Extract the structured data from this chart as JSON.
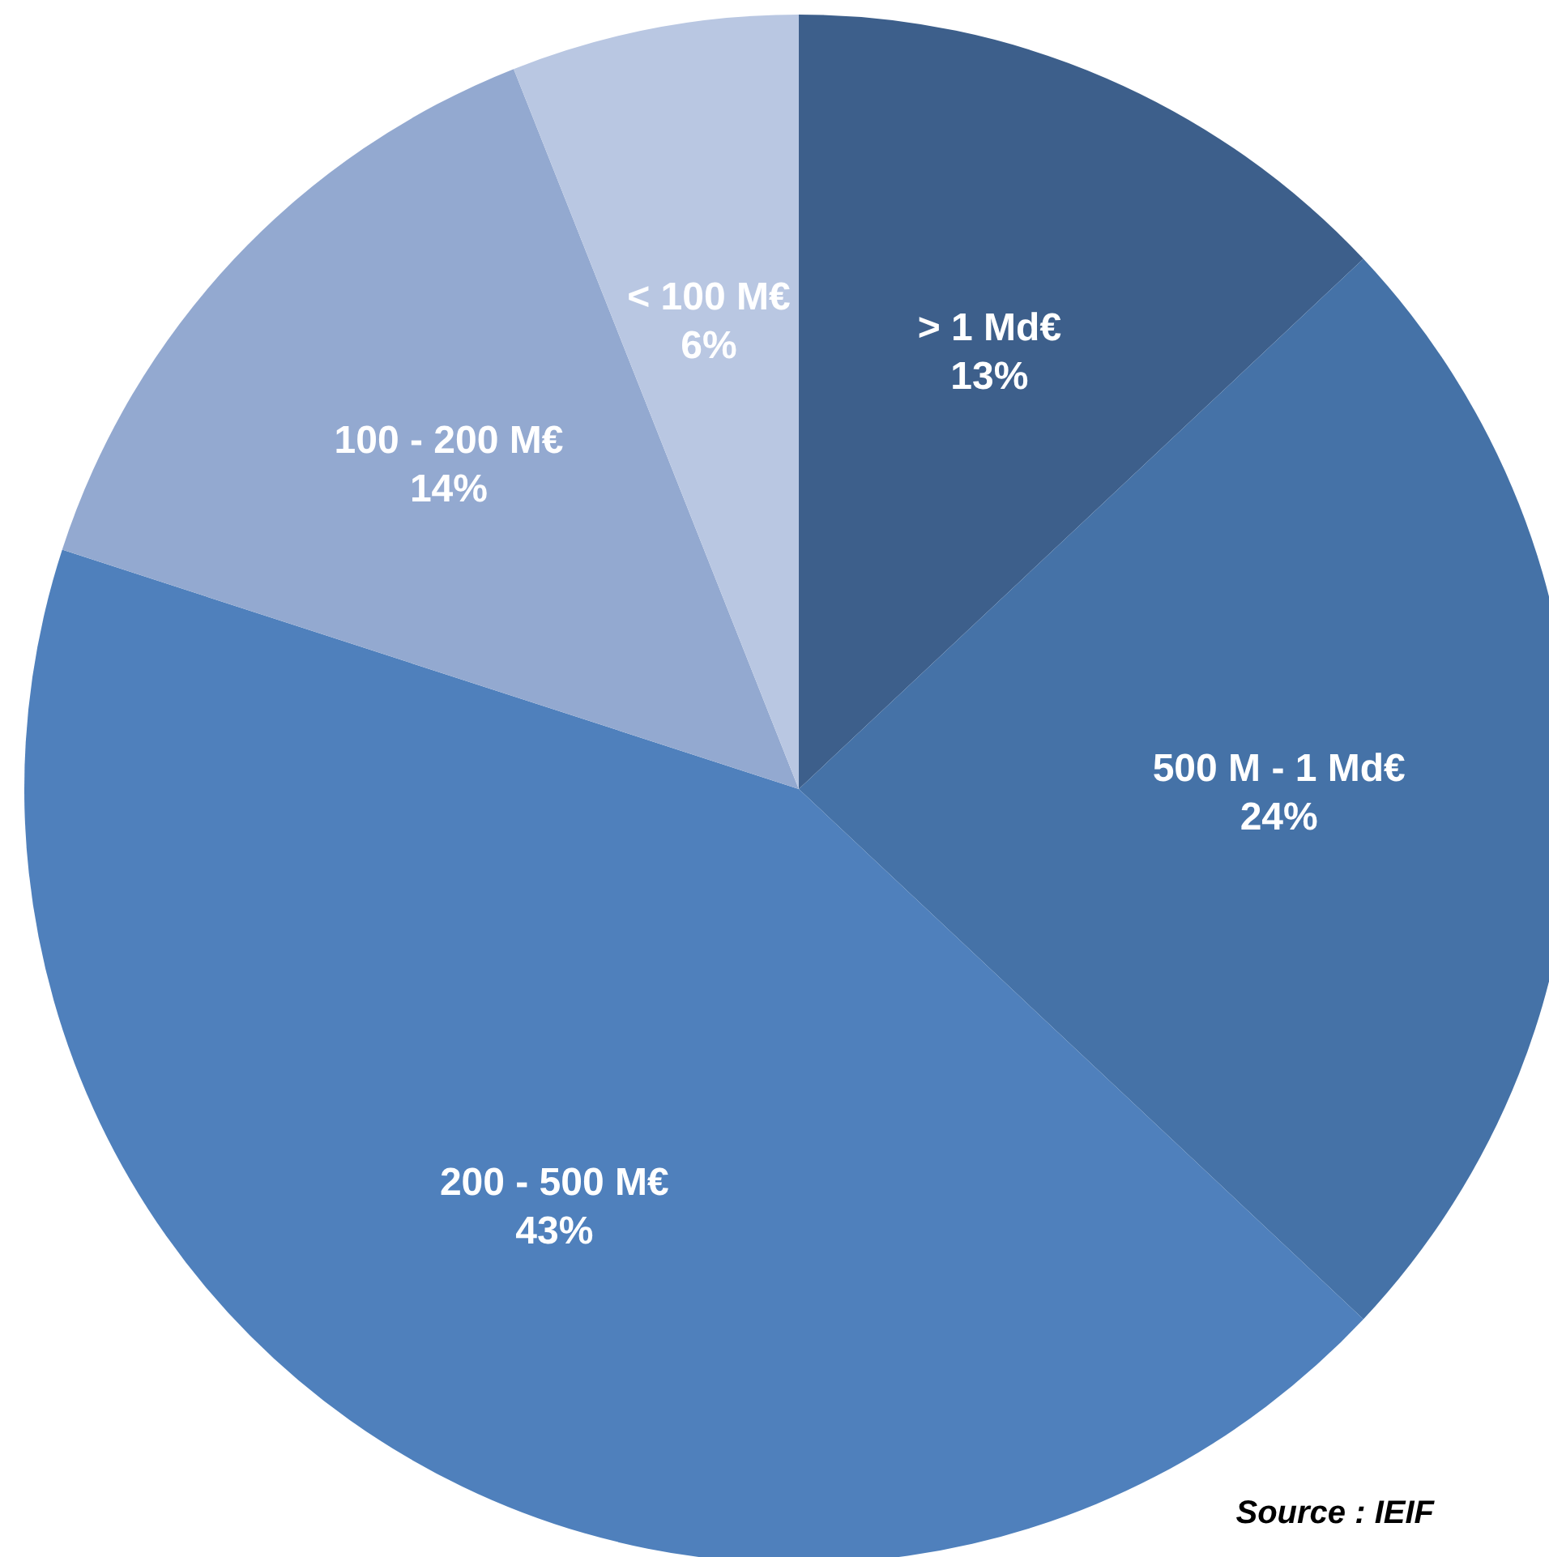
{
  "chart_data": {
    "type": "pie",
    "categories": [
      "> 1 Md€",
      "500 M - 1 Md€",
      "200 - 500 M€",
      "100 - 200 M€",
      "< 100 M€"
    ],
    "values": [
      13,
      24,
      43,
      14,
      6
    ],
    "colors": [
      "#3d5f8b",
      "#4572a7",
      "#4f80bc",
      "#93a9d0",
      "#b9c7e2"
    ],
    "value_labels": [
      "13%",
      "24%",
      "43%",
      "14%",
      "6%"
    ],
    "annotations": [
      "Source : IEIF"
    ]
  }
}
